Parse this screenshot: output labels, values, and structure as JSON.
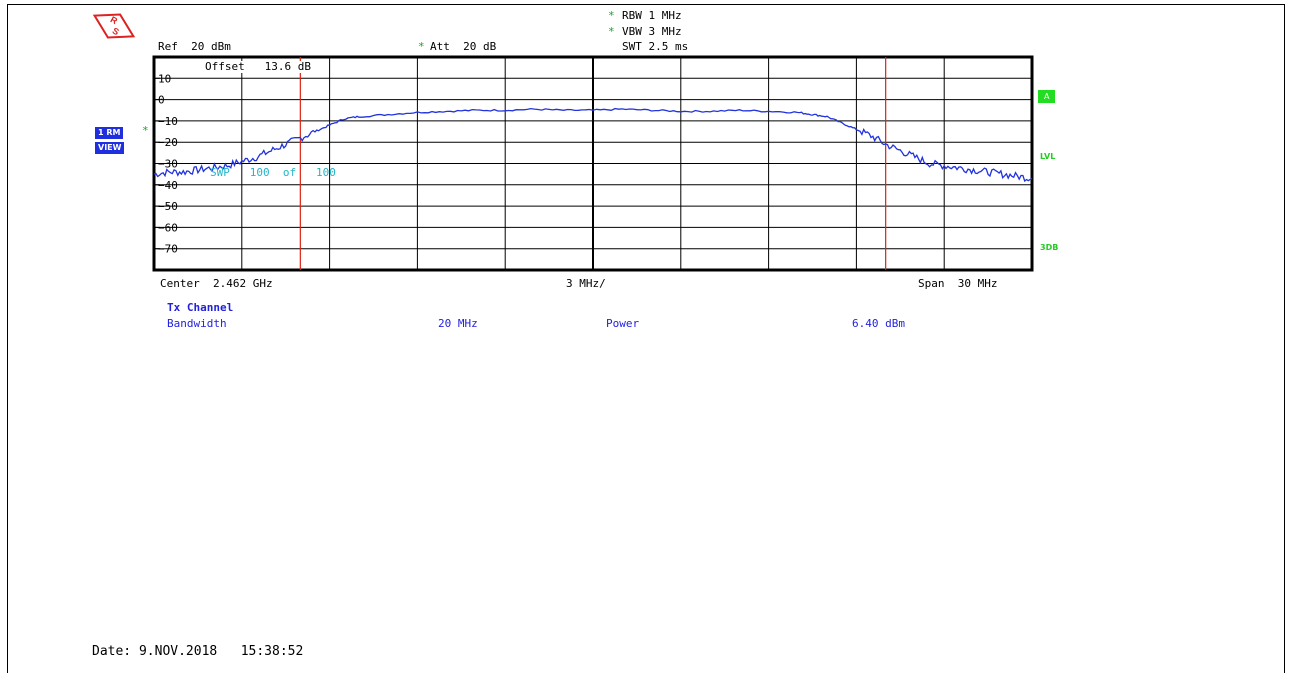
{
  "header": {
    "rbw": "RBW 1 MHz",
    "vbw": "VBW 3 MHz",
    "swt": "SWT 2.5 ms",
    "ref": "Ref  20 dBm",
    "att": "Att  20 dB",
    "offset": "Offset   13.6 dB",
    "star": "*"
  },
  "side": {
    "trace_badge": "1 RM",
    "view_badge": "VIEW",
    "a_badge": "A",
    "lvl": "LVL",
    "db3": "3DB"
  },
  "overlay": {
    "sweep_count": "SWP   100  of   100"
  },
  "footer_axis": {
    "center": "Center  2.462 GHz",
    "per_div": "3 MHz/",
    "span": "Span  30 MHz"
  },
  "results": {
    "title": "Tx Channel",
    "bandwidth_label": "Bandwidth",
    "bandwidth_value": "20 MHz",
    "power_label": "Power",
    "power_value": "6.40 dBm"
  },
  "date": "Date: 9.NOV.2018   15:38:52",
  "colors": {
    "trace": "#2233dd",
    "marker_lines": "#dd2211",
    "grid": "#000000"
  },
  "chart_data": {
    "type": "line",
    "title": "",
    "xlabel": "",
    "ylabel": "",
    "x_unit": "GHz",
    "y_unit": "dBm",
    "xlim": [
      2.447,
      2.477
    ],
    "ylim": [
      -80,
      20
    ],
    "y_ticks": [
      10,
      0,
      -10,
      -20,
      -30,
      -40,
      -50,
      -60,
      -70
    ],
    "grid": true,
    "channel_lines": [
      2.452,
      2.472
    ],
    "series": [
      {
        "name": "",
        "x": [
          2.447,
          2.4475,
          2.448,
          2.4485,
          2.449,
          2.4495,
          2.45,
          2.4505,
          2.451,
          2.4515,
          2.452,
          2.4525,
          2.453,
          2.4535,
          2.454,
          2.455,
          2.456,
          2.457,
          2.458,
          2.459,
          2.46,
          2.461,
          2.462,
          2.463,
          2.464,
          2.465,
          2.466,
          2.467,
          2.468,
          2.469,
          2.4695,
          2.47,
          2.4705,
          2.471,
          2.4715,
          2.472,
          2.4725,
          2.473,
          2.4735,
          2.474,
          2.4745,
          2.475,
          2.4755,
          2.476,
          2.4765,
          2.477
        ],
        "y": [
          -35,
          -34,
          -34,
          -33,
          -32,
          -31,
          -29,
          -27,
          -24,
          -21,
          -18,
          -15,
          -12,
          -9,
          -8,
          -7,
          -6,
          -5.5,
          -5,
          -5,
          -4.5,
          -5,
          -5,
          -4.5,
          -5,
          -5.5,
          -5.5,
          -5,
          -5.5,
          -6,
          -7,
          -8,
          -11,
          -14,
          -17,
          -21,
          -24,
          -27,
          -30,
          -31,
          -32,
          -33,
          -34,
          -35,
          -36,
          -37
        ]
      }
    ]
  }
}
